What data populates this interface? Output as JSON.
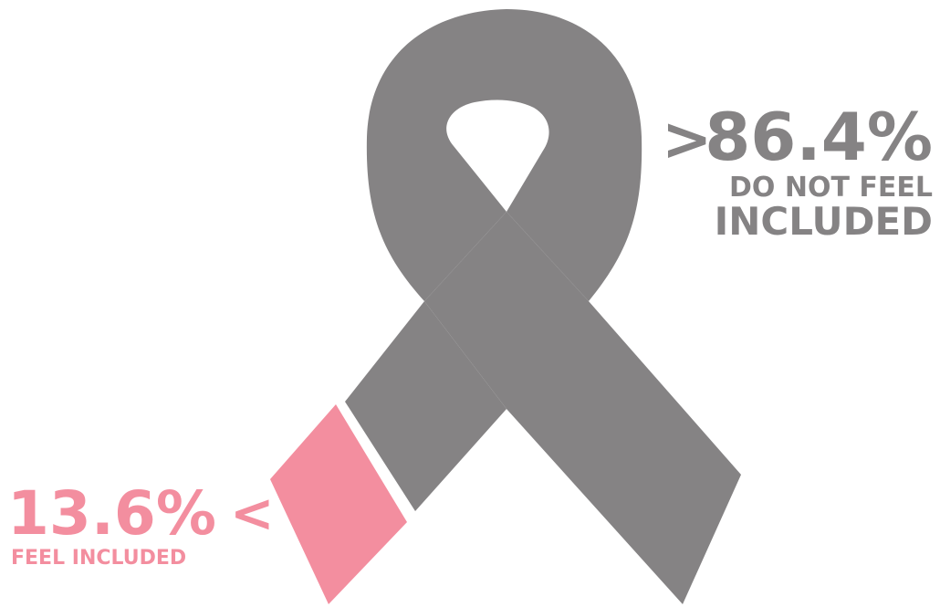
{
  "colors": {
    "gray": "#858384",
    "pink": "#f38e9f",
    "background": "#ffffff"
  },
  "chart_data": {
    "type": "pie",
    "categories": [
      "DO NOT FEEL INCLUDED",
      "FEEL INCLUDED"
    ],
    "values": [
      86.4,
      13.6
    ],
    "value_labels": [
      "86.4%",
      "13.6%"
    ],
    "annotations": {
      "do_not_feel_line1": "DO NOT FEEL",
      "do_not_feel_line2": "INCLUDED",
      "feel_included": "FEEL INCLUDED"
    },
    "arrows": {
      "right": ">",
      "left": "<"
    }
  }
}
